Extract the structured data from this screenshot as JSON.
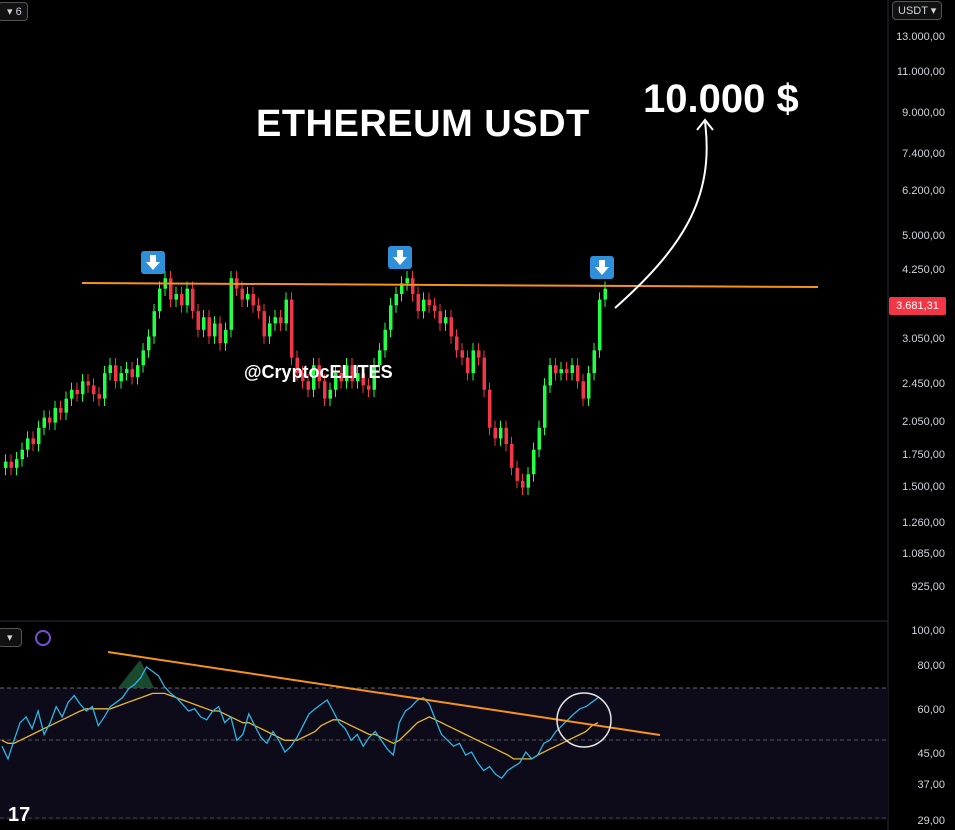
{
  "header": {
    "tab_number": "6",
    "currency": "USDT"
  },
  "annotations": {
    "title": "ETHEREUM USDT",
    "target": "10.000 $",
    "watermark": "@CryptocELITES"
  },
  "price_axis": {
    "labels": [
      "13.000,00",
      "11.000,00",
      "9.000,00",
      "7.400,00",
      "6.200,00",
      "5.000,00",
      "4.250,00",
      "3.050,00",
      "2.450,00",
      "2.050,00",
      "1.750,00",
      "1.500,00",
      "1.260,00",
      "1.085,00",
      "925,00"
    ],
    "current_price": "3.681,31"
  },
  "rsi_axis": {
    "labels": [
      "100,00",
      "80,00",
      "60,00",
      "45,00",
      "37,00",
      "29,00"
    ]
  },
  "colors": {
    "up": "#22ff44",
    "down": "#f23645",
    "resistance": "#f7931a",
    "rsi": "#2bb5e6",
    "rsi_ma": "#e8b92f",
    "marker": "#2f8fd8"
  },
  "chart_data": [
    {
      "type": "candlestick",
      "title": "ETHEREUM USDT",
      "scale": "log",
      "ylim": [
        850,
        15000
      ],
      "close": [
        1700,
        1650,
        1720,
        1800,
        1900,
        1850,
        2000,
        2100,
        2050,
        2200,
        2150,
        2300,
        2400,
        2350,
        2500,
        2450,
        2350,
        2300,
        2600,
        2700,
        2500,
        2600,
        2650,
        2550,
        2700,
        2900,
        3100,
        3500,
        3900,
        4100,
        3700,
        3800,
        3600,
        3900,
        3500,
        3200,
        3400,
        3100,
        3300,
        3000,
        3200,
        4100,
        3900,
        3700,
        3800,
        3600,
        3500,
        3100,
        3300,
        3400,
        3300,
        3700,
        2800,
        2600,
        2500,
        2400,
        2700,
        2500,
        2300,
        2400,
        2600,
        2500,
        2700,
        2500,
        2600,
        2450,
        2400,
        2700,
        2900,
        3200,
        3600,
        3800,
        4000,
        4100,
        3800,
        3500,
        3700,
        3600,
        3500,
        3300,
        3400,
        3100,
        2900,
        2800,
        2600,
        2900,
        2800,
        2400,
        2000,
        1900,
        2000,
        1850,
        1650,
        1550,
        1500,
        1600,
        1800,
        2000,
        2450,
        2700,
        2600,
        2650,
        2600,
        2700,
        2500,
        2300,
        2600,
        2900,
        3700,
        3900
      ],
      "annotations": [
        "10.000 $"
      ]
    },
    {
      "type": "line",
      "ylim": [
        29,
        100
      ],
      "series": [
        {
          "values": [
            48,
            44,
            50,
            56,
            58,
            54,
            60,
            52,
            56,
            62,
            58,
            64,
            67,
            63,
            60,
            62,
            55,
            58,
            62,
            64,
            66,
            70,
            72,
            75,
            80,
            78,
            76,
            71,
            68,
            66,
            63,
            60,
            61,
            58,
            57,
            60,
            62,
            56,
            58,
            50,
            52,
            59,
            55,
            51,
            49,
            53,
            50,
            46,
            48,
            51,
            55,
            59,
            61,
            63,
            65,
            60,
            56,
            54,
            50,
            52,
            48,
            51,
            53,
            50,
            47,
            45,
            56,
            60,
            62,
            65,
            66,
            63,
            57,
            52,
            50,
            48,
            49,
            45,
            46,
            43,
            41,
            42,
            40,
            39,
            41,
            42,
            43,
            46,
            44,
            45,
            49,
            50,
            53,
            55,
            57,
            59,
            61,
            62,
            64,
            66
          ]
        },
        {
          "values": [
            50,
            49,
            49,
            50,
            51,
            52,
            53,
            54,
            55,
            56,
            57,
            58,
            59,
            60,
            61,
            61,
            61,
            61,
            61,
            62,
            63,
            64,
            65,
            66,
            67,
            68,
            68,
            68,
            67,
            66,
            65,
            64,
            63,
            62,
            61,
            60,
            60,
            59,
            58,
            57,
            56,
            56,
            55,
            54,
            53,
            52,
            51,
            50,
            50,
            50,
            51,
            52,
            53,
            55,
            56,
            57,
            57,
            56,
            55,
            54,
            53,
            52,
            52,
            51,
            50,
            49,
            50,
            52,
            54,
            56,
            57,
            58,
            57,
            56,
            55,
            54,
            53,
            52,
            51,
            50,
            49,
            48,
            47,
            46,
            45,
            44,
            44,
            44,
            44,
            45,
            46,
            47,
            48,
            49,
            50,
            51,
            52,
            53,
            55,
            56
          ]
        }
      ]
    }
  ]
}
